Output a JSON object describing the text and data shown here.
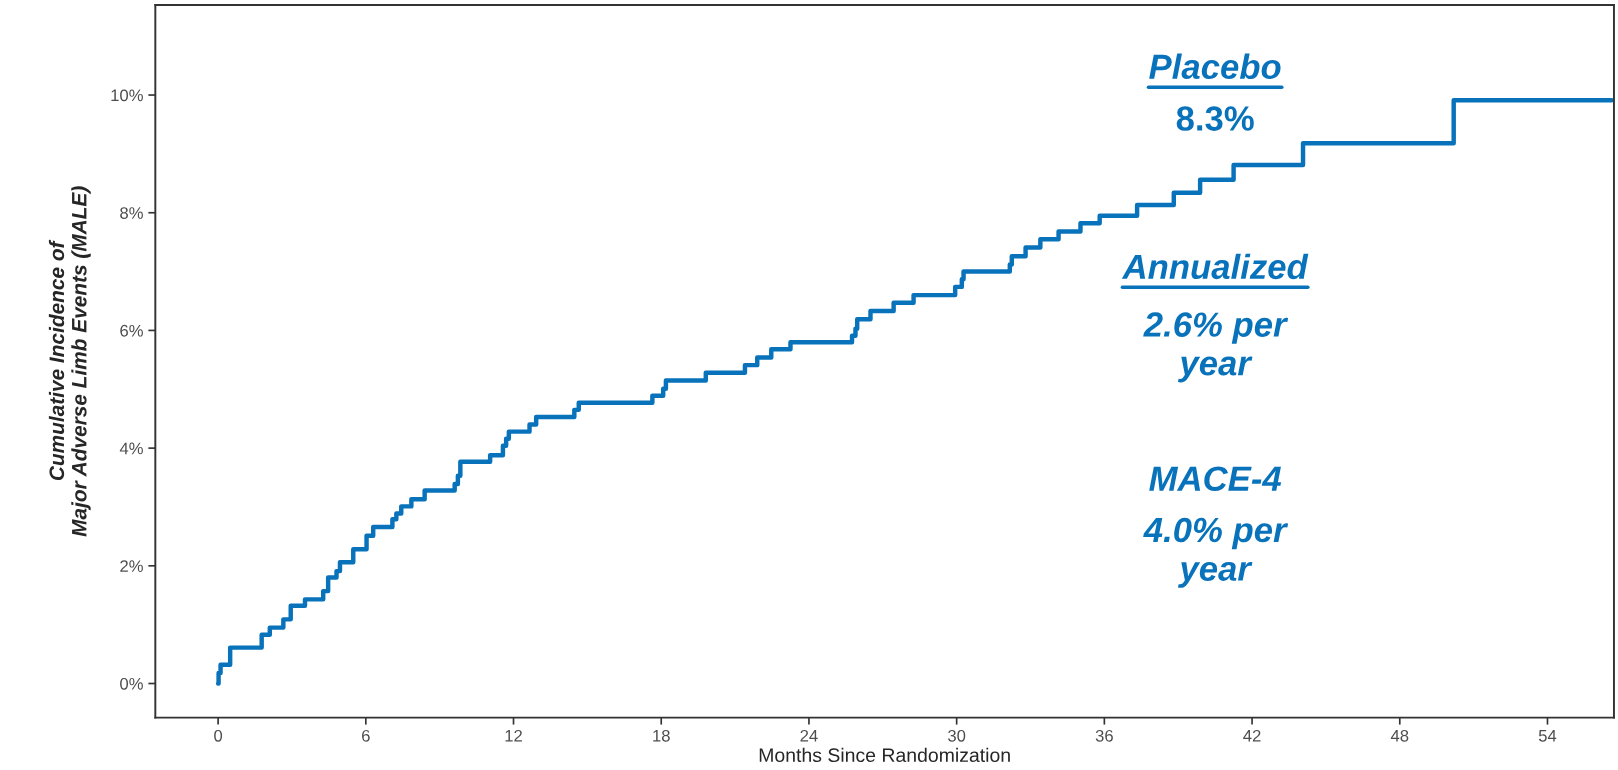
{
  "chart_data": {
    "type": "step",
    "xlabel": "Months Since Randomization",
    "ylabel": "Cumulative Incidence of\nMajor Adverse Limb Events (MALE)",
    "x": [
      0,
      0.02,
      0.1,
      0.49,
      1.77,
      2.1,
      2.65,
      2.95,
      3.53,
      4.27,
      4.47,
      4.81,
      4.95,
      5.49,
      6.03,
      6.3,
      7.08,
      7.24,
      7.44,
      7.85,
      8.39,
      9.61,
      9.74,
      9.84,
      11.05,
      11.57,
      11.7,
      11.81,
      12.65,
      12.92,
      14.47,
      14.65,
      17.64,
      18.08,
      18.19,
      19.81,
      21.4,
      21.9,
      22.47,
      23.25,
      25.75,
      25.89,
      25.96,
      26.5,
      27.44,
      28.25,
      29.94,
      30.21,
      30.28,
      32.16,
      32.24,
      32.8,
      33.4,
      34.14,
      35.03,
      35.81,
      37.33,
      38.82,
      39.89,
      41.25,
      44.07,
      50.19,
      56.6
    ],
    "series": [
      {
        "color": "#0872bb",
        "values": [
          0,
          0.18,
          0.32,
          0.61,
          0.83,
          0.95,
          1.09,
          1.32,
          1.43,
          1.57,
          1.8,
          1.91,
          2.06,
          2.28,
          2.51,
          2.66,
          2.79,
          2.89,
          3.01,
          3.13,
          3.28,
          3.39,
          3.53,
          3.77,
          3.88,
          4.04,
          4.16,
          4.28,
          4.4,
          4.53,
          4.65,
          4.77,
          4.89,
          5.01,
          5.15,
          5.28,
          5.41,
          5.54,
          5.68,
          5.8,
          5.91,
          6.03,
          6.19,
          6.33,
          6.47,
          6.6,
          6.74,
          6.87,
          7.0,
          7.12,
          7.26,
          7.41,
          7.55,
          7.68,
          7.82,
          7.95,
          8.13,
          8.34,
          8.56,
          8.81,
          9.18,
          9.91,
          9.91
        ]
      }
    ],
    "xlim": [
      -2.55,
      56.7
    ],
    "xticks": [
      0,
      6,
      12,
      18,
      24,
      30,
      36,
      42,
      48,
      54
    ],
    "ylim": [
      -0.58,
      11.53
    ],
    "yticks": [
      {
        "value": 0,
        "label": "0%"
      },
      {
        "value": 2,
        "label": "2%"
      },
      {
        "value": 4,
        "label": "4%"
      },
      {
        "value": 6,
        "label": "6%"
      },
      {
        "value": 8,
        "label": "8%"
      },
      {
        "value": 10,
        "label": "10%"
      }
    ],
    "grid": false,
    "annotations": [
      "Placebo",
      "8.3%",
      "Annualized",
      "2.6% per\nyear",
      "MACE-4",
      "4.0% per\nyear"
    ]
  }
}
